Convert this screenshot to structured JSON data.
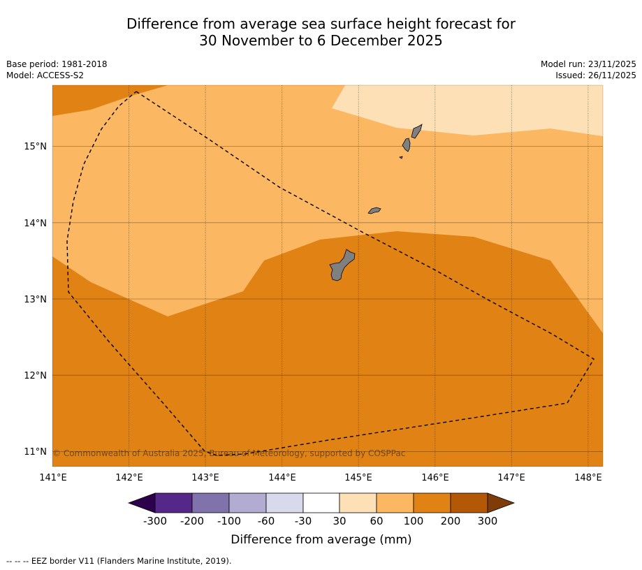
{
  "header": {
    "title_line1": "Difference from average sea surface height forecast for",
    "title_line2": "30 November to 6 December 2025",
    "base_period": "Base period: 1981-2018",
    "model": "Model: ACCESS-S2",
    "model_run": "Model run: 23/11/2025",
    "issued": "Issued: 26/11/2025"
  },
  "map": {
    "lon_range": [
      141.0,
      148.2
    ],
    "lat_range": [
      10.8,
      15.8
    ],
    "lon_ticks": [
      "141°E",
      "142°E",
      "143°E",
      "144°E",
      "145°E",
      "146°E",
      "147°E",
      "148°E"
    ],
    "lat_ticks": [
      "11°N",
      "12°N",
      "13°N",
      "14°N",
      "15°N"
    ],
    "copyright": "© Commonwealth of Australia 2025, Bureau of Meteorology, supported by COSPPac",
    "colors": {
      "band_100_200": "#e08214",
      "band_60_100": "#fbb762",
      "band_30_60": "#fee0b6",
      "land": "#808080"
    }
  },
  "colorbar": {
    "labels": [
      "-300",
      "-200",
      "-100",
      "-60",
      "-30",
      "30",
      "60",
      "100",
      "200",
      "300"
    ],
    "colors": [
      "#2d004b",
      "#542788",
      "#8073ac",
      "#b2abd2",
      "#d8daeb",
      "#ffffff",
      "#fee0b6",
      "#fbb762",
      "#e08214",
      "#b35806",
      "#7f3b08"
    ],
    "title": "Difference from average (mm)"
  },
  "footnote": "--  --  -- EEZ border V11 (Flanders Marine Institute, 2019)."
}
